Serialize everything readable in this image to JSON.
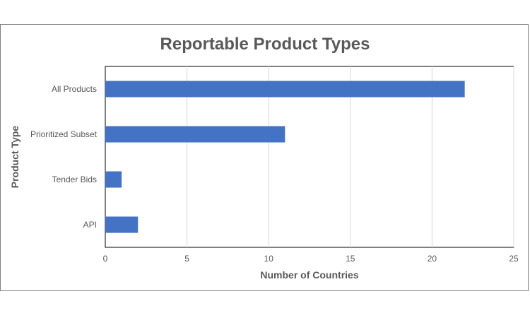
{
  "chart_data": {
    "type": "bar",
    "orientation": "horizontal",
    "title": "Reportable Product Types",
    "xlabel": "Number of Countries",
    "ylabel": "Product Type",
    "categories": [
      "All Products",
      "Prioritized Subset",
      "Tender Bids",
      "API"
    ],
    "values": [
      22,
      11,
      1,
      2
    ],
    "xlim": [
      0,
      25
    ],
    "xticks": [
      0,
      5,
      10,
      15,
      20,
      25
    ],
    "grid": "vertical",
    "legend": "none",
    "bar_color": "#4472C4"
  }
}
